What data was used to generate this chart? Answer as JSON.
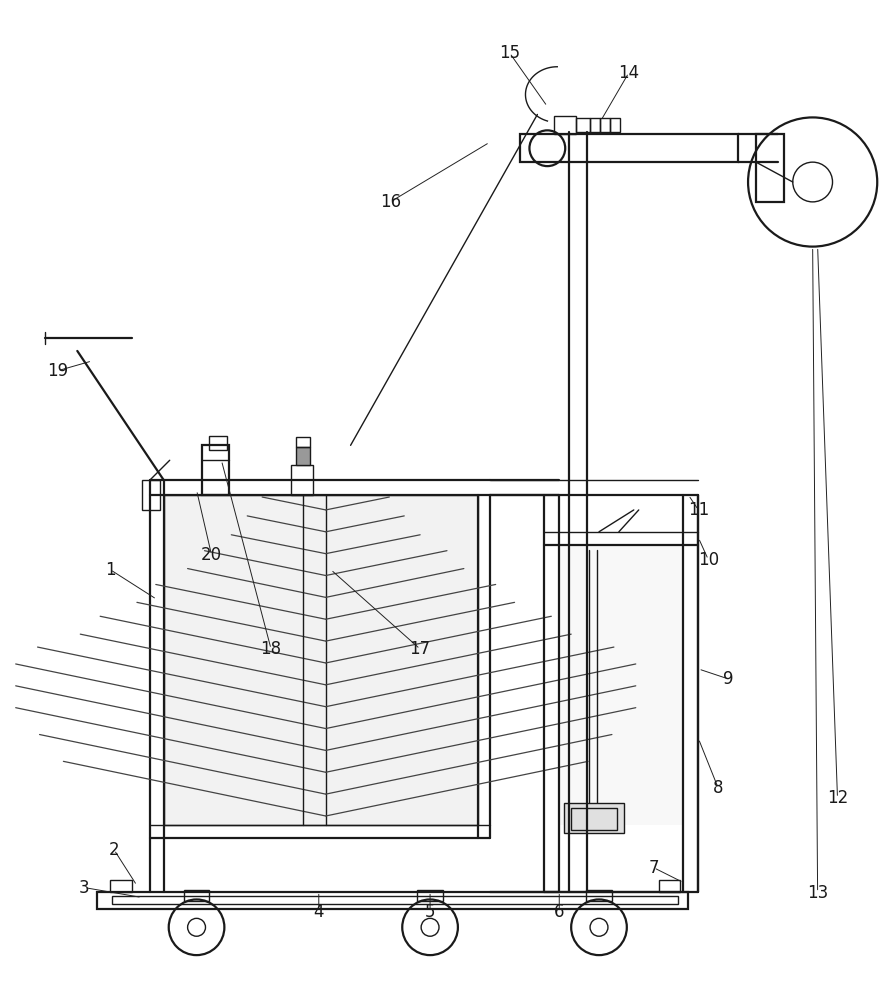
{
  "bg_color": "#ffffff",
  "lc": "#1a1a1a",
  "lw": 1.0,
  "lw2": 1.6,
  "fig_width": 8.83,
  "fig_height": 10.0
}
